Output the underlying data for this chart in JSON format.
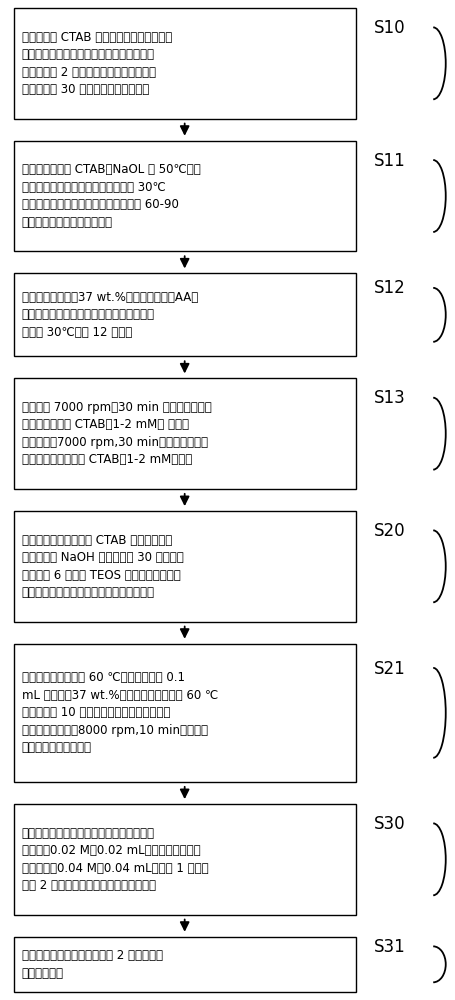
{
  "background_color": "#ffffff",
  "box_edge_color": "#000000",
  "box_face_color": "#ffffff",
  "arrow_color": "#000000",
  "text_color": "#000000",
  "steps": [
    {
      "label": "S10",
      "text": "将一定量的 CTAB 与氯金酸混合，再加入冰\n水混合物配制而成的硼氢化钠，经磁力搅拌\n器剧烈搅拌 2 分钟后溶液由金黄色变成棕\n黄色。静置 30 分钟，此为种子溶液。",
      "lines": 4
    },
    {
      "label": "S11",
      "text": "将对应低浓度的 CTAB、NaOL 在 50℃下溶\n解于另一瓶中作为生长溶液，冷却至 30℃\n再加入硝酸银、氯金酸。在室温下搅拌 60-90\n分钟后溶液由金黄色变澄清。",
      "lines": 4
    },
    {
      "label": "S12",
      "text": "依次加入浓盐酸（37 wt.%）、抗坏血酸（AA）\n与种子溶液。并用磁力搅拌器剧烈搅拌，之\n后恒温 30℃静置 12 小时。",
      "lines": 3
    },
    {
      "label": "S13",
      "text": "将产物在 7000 rpm，30 min 下离心。去除上\n层清液之后加入 CTAB（1-2 mM） 再进行\n二次离心（7000 rpm,30 min）。去除上清液\n后分散在对应体积的 CTAB（1-2 mM）中。",
      "lines": 4
    },
    {
      "label": "S20",
      "text": "金纳米棒离心并分散在 CTAB 溶液中，在加\n入一定量的 NaOH 溶液后，以 30 分钟的时\n间间隔分 6 次加入 TEOS 溶液，持续搅拌两\n天，得到由介孔二氧化硅包覆的金纳米棒。",
      "lines": 4
    },
    {
      "label": "S21",
      "text": "取出上述产物，置于 60 ℃油浴中，添加 0.1\nmL 浓盐酸（37 wt.%）开始腐蚀过程。在 60 ℃\n油浴下腐蚀 10 分钟，添加冷置的甲醇来结束\n腐蚀，然后离心（8000 rpm,10 min）。再将\n沉淀分散在水溶液中。",
      "lines": 5
    },
    {
      "label": "S30",
      "text": "取出分散在水溶液中的产物，添加四氯铂酸\n钾溶液（0.02 M，0.02 mL），然后添加抗坏\n血酸溶液（0.04 M，0.04 mL）搅拌 1 分钟，\n静置 2 小时后铂即可沉积在金纳米棒上。",
      "lines": 4
    },
    {
      "label": "S31",
      "text": "最后将反应所得的产物，离心 2 次，测试透\n射电镜样品。",
      "lines": 2
    }
  ],
  "figsize": [
    4.56,
    10.0
  ],
  "dpi": 100
}
